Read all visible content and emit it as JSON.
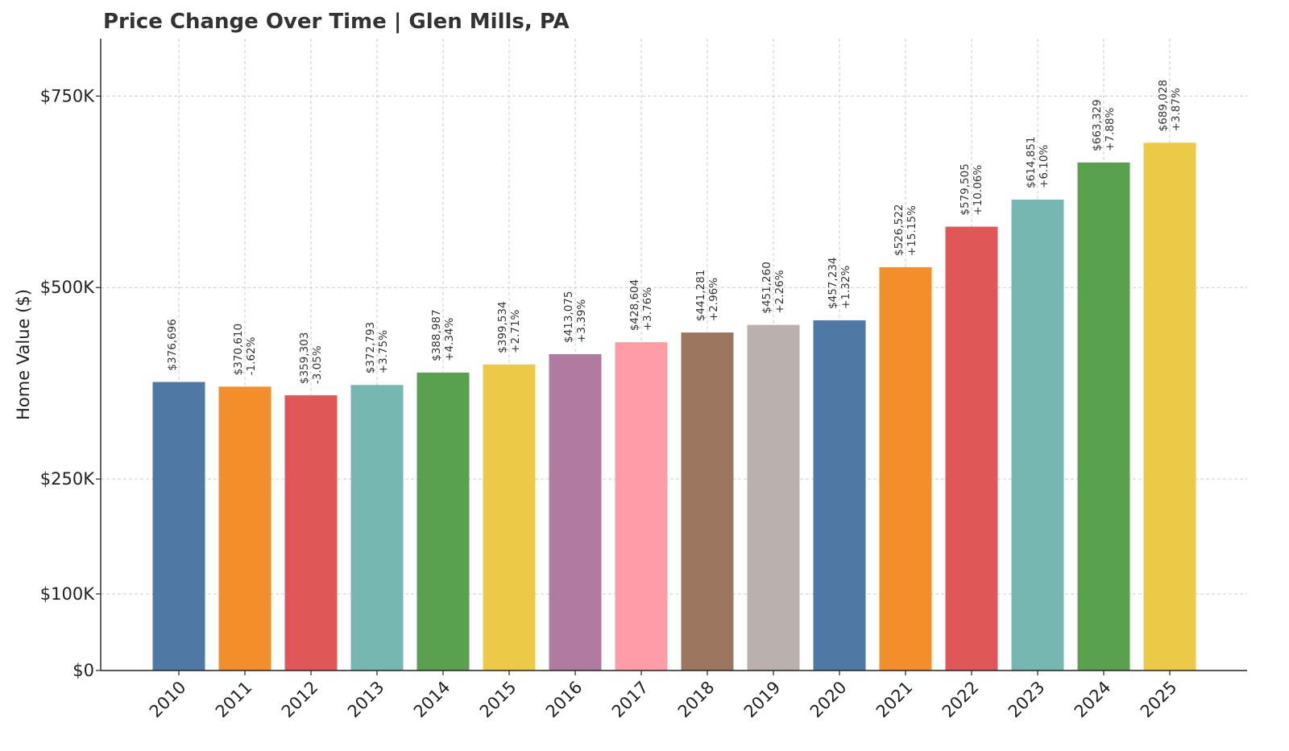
{
  "chart_data": {
    "type": "bar",
    "title": "Price Change Over Time | Glen Mills, PA",
    "xlabel": "",
    "ylabel": "Home Value ($)",
    "ylim": [
      0,
      825000
    ],
    "grid": true,
    "yticks": [
      {
        "value": 0,
        "label": "$0"
      },
      {
        "value": 100000,
        "label": "$100K"
      },
      {
        "value": 250000,
        "label": "$250K"
      },
      {
        "value": 500000,
        "label": "$500K"
      },
      {
        "value": 750000,
        "label": "$750K"
      }
    ],
    "categories": [
      "2010",
      "2011",
      "2012",
      "2013",
      "2014",
      "2015",
      "2016",
      "2017",
      "2018",
      "2019",
      "2020",
      "2021",
      "2022",
      "2023",
      "2024",
      "2025"
    ],
    "values": [
      376696,
      370610,
      359303,
      372793,
      388987,
      399534,
      413075,
      428604,
      441281,
      451260,
      457234,
      526522,
      579505,
      614851,
      663329,
      689028
    ],
    "value_labels": [
      "$376,696",
      "$370,610",
      "$359,303",
      "$372,793",
      "$388,987",
      "$399,534",
      "$413,075",
      "$428,604",
      "$441,281",
      "$451,260",
      "$457,234",
      "$526,522",
      "$579,505",
      "$614,851",
      "$663,329",
      "$689,028"
    ],
    "change_labels": [
      "",
      "-1.62%",
      "-3.05%",
      "+3.75%",
      "+4.34%",
      "+2.71%",
      "+3.39%",
      "+3.76%",
      "+2.96%",
      "+2.26%",
      "+1.32%",
      "+15.15%",
      "+10.06%",
      "+6.10%",
      "+7.88%",
      "+3.87%"
    ],
    "colors": [
      "#4e79a7",
      "#f28e2b",
      "#e15759",
      "#76b7b2",
      "#59a14f",
      "#edc948",
      "#b07aa1",
      "#ff9da7",
      "#9c755f",
      "#bab0ac",
      "#4e79a7",
      "#f28e2b",
      "#e15759",
      "#76b7b2",
      "#59a14f",
      "#edc948"
    ]
  }
}
